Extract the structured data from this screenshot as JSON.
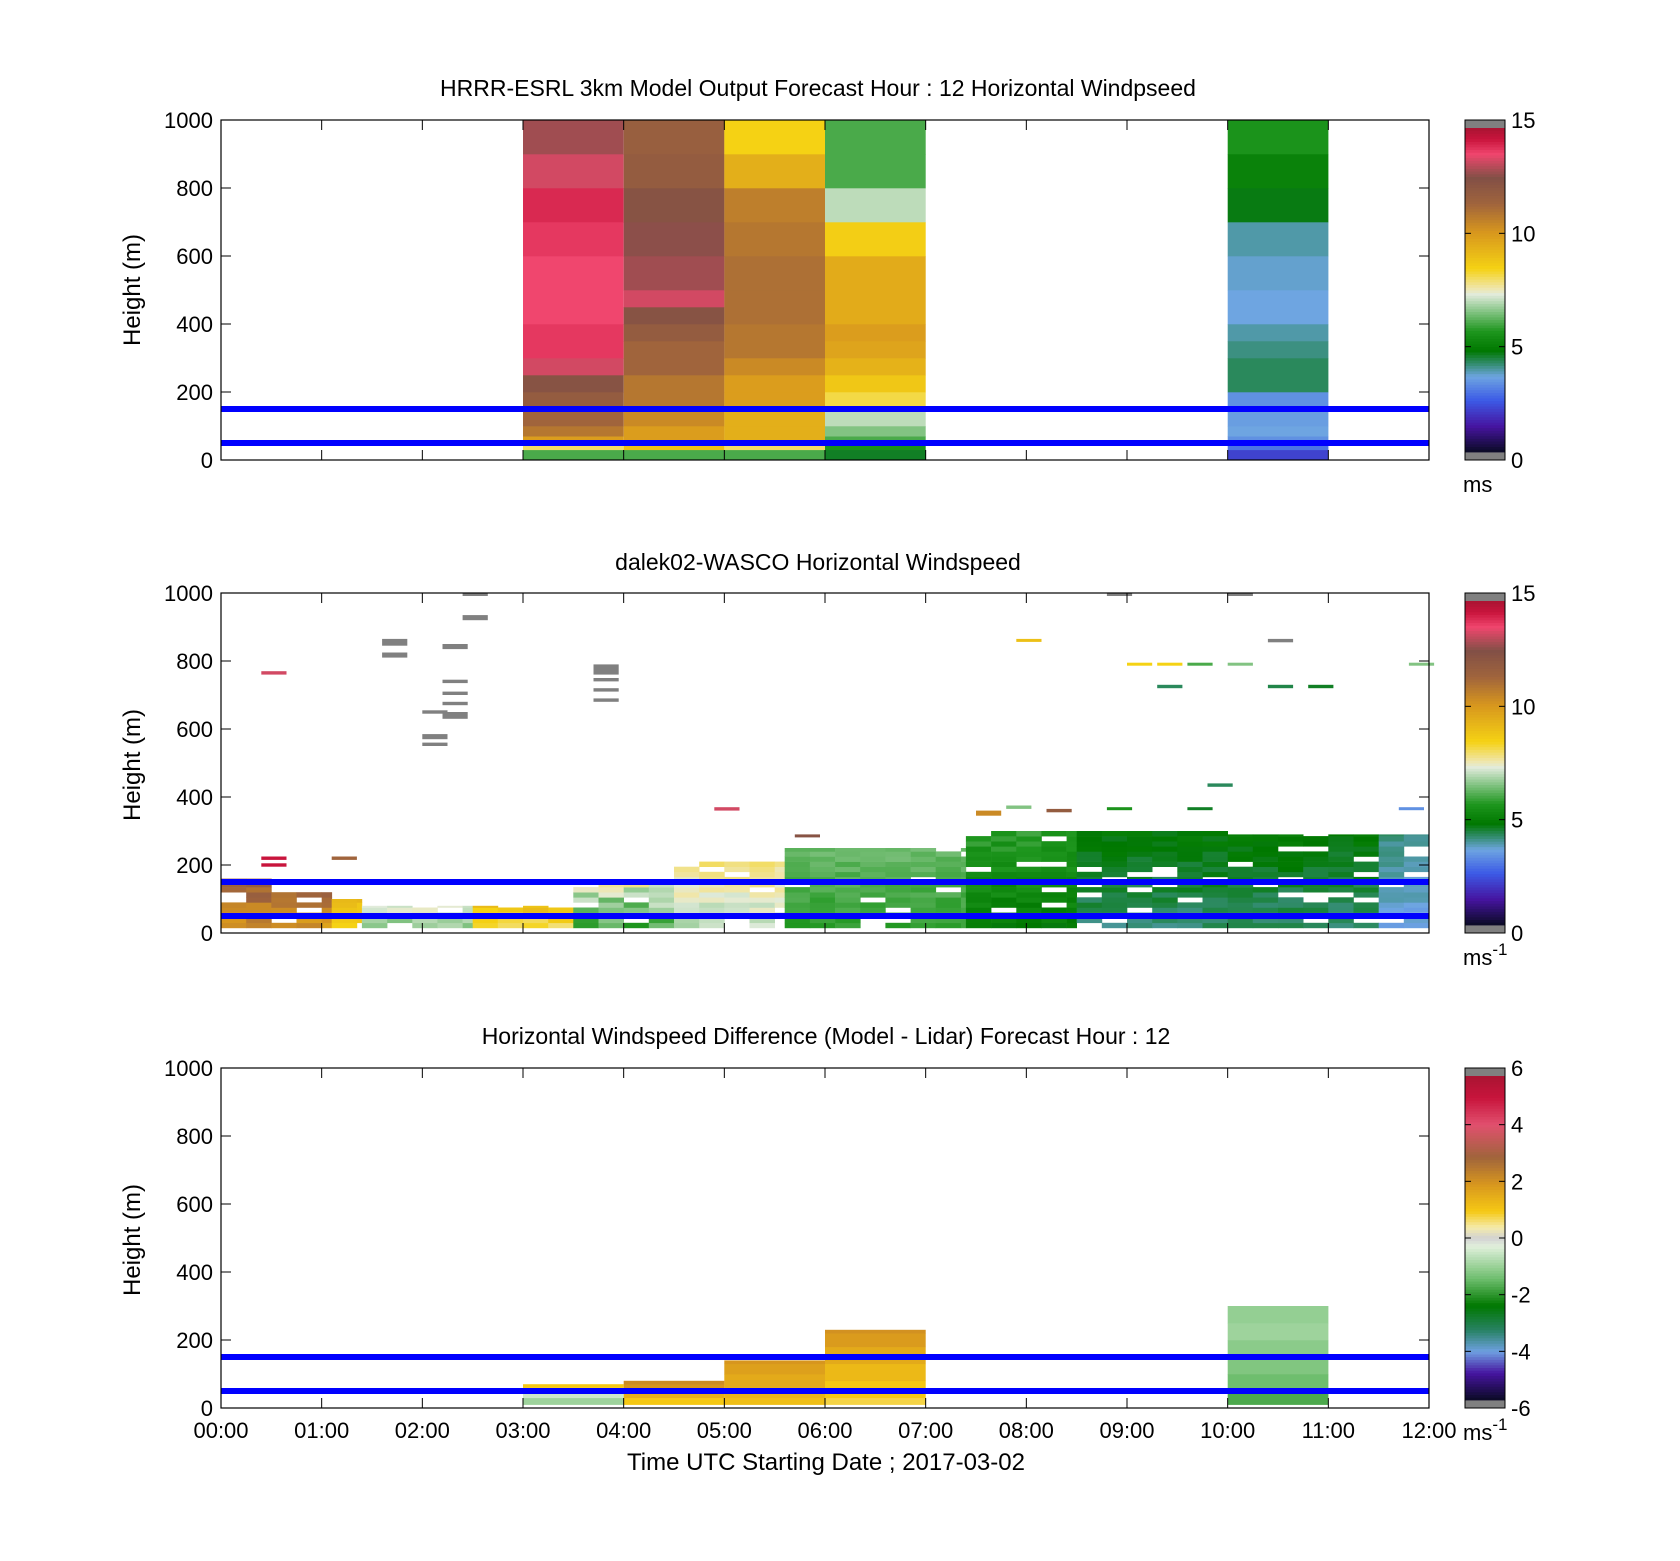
{
  "chart_data": [
    {
      "type": "heatmap",
      "title": "HRRR-ESRL 3km Model Output   Forecast Hour : 12 Horizontal Windpseed",
      "ylabel": "Height (m)",
      "ylim": [
        0,
        1000
      ],
      "yticks": [
        "0",
        "200",
        "400",
        "600",
        "800",
        "1000"
      ],
      "xlim_hours": [
        0,
        12
      ],
      "xticks": [],
      "colorbar": {
        "min": 0,
        "max": 15,
        "ticks": [
          "0",
          "5",
          "10",
          "15"
        ],
        "unit": "ms",
        "unit_sup": "",
        "palette": "speed"
      },
      "reference_lines_m": [
        50,
        150
      ],
      "columns": [
        {
          "t0": 3,
          "t1": 4,
          "bins": [
            [
              0,
              30,
              6
            ],
            [
              30,
              50,
              8
            ],
            [
              50,
              70,
              10
            ],
            [
              70,
              100,
              11
            ],
            [
              100,
              150,
              11.5
            ],
            [
              150,
              200,
              12
            ],
            [
              200,
              250,
              12.5
            ],
            [
              250,
              300,
              13.5
            ],
            [
              300,
              350,
              14
            ],
            [
              350,
              400,
              14
            ],
            [
              400,
              600,
              13.8
            ],
            [
              600,
              700,
              14
            ],
            [
              700,
              800,
              14.2
            ],
            [
              800,
              900,
              13.5
            ],
            [
              900,
              1000,
              13
            ]
          ]
        },
        {
          "t0": 4,
          "t1": 5,
          "bins": [
            [
              0,
              30,
              6
            ],
            [
              30,
              50,
              9
            ],
            [
              50,
              100,
              10
            ],
            [
              100,
              150,
              10.5
            ],
            [
              150,
              200,
              11
            ],
            [
              200,
              250,
              11
            ],
            [
              250,
              300,
              11.5
            ],
            [
              300,
              350,
              11.5
            ],
            [
              350,
              400,
              12
            ],
            [
              400,
              450,
              12.5
            ],
            [
              450,
              500,
              13.5
            ],
            [
              500,
              600,
              13
            ],
            [
              600,
              700,
              12.8
            ],
            [
              700,
              800,
              12.5
            ],
            [
              800,
              900,
              12
            ],
            [
              900,
              1000,
              11.8
            ]
          ]
        },
        {
          "t0": 5,
          "t1": 6,
          "bins": [
            [
              0,
              30,
              6
            ],
            [
              30,
              50,
              8
            ],
            [
              50,
              100,
              9.5
            ],
            [
              100,
              150,
              9.5
            ],
            [
              150,
              200,
              10
            ],
            [
              200,
              250,
              10
            ],
            [
              250,
              300,
              10.5
            ],
            [
              300,
              350,
              11
            ],
            [
              350,
              400,
              11
            ],
            [
              400,
              500,
              11.2
            ],
            [
              500,
              600,
              11.2
            ],
            [
              600,
              700,
              11
            ],
            [
              700,
              800,
              10.8
            ],
            [
              800,
              900,
              9.5
            ],
            [
              900,
              1000,
              8.5
            ]
          ]
        },
        {
          "t0": 6,
          "t1": 7,
          "bins": [
            [
              0,
              30,
              4.5
            ],
            [
              30,
              50,
              5.5
            ],
            [
              50,
              70,
              6
            ],
            [
              70,
              100,
              6.5
            ],
            [
              100,
              150,
              7
            ],
            [
              150,
              200,
              8.2
            ],
            [
              200,
              250,
              8.8
            ],
            [
              250,
              300,
              9.4
            ],
            [
              300,
              350,
              9.8
            ],
            [
              350,
              400,
              10
            ],
            [
              400,
              600,
              9.6
            ],
            [
              600,
              700,
              8.6
            ],
            [
              700,
              800,
              7
            ],
            [
              800,
              900,
              6
            ],
            [
              900,
              1000,
              6
            ]
          ]
        },
        {
          "t0": 10,
          "t1": 11,
          "bins": [
            [
              0,
              30,
              2
            ],
            [
              30,
              50,
              2.8
            ],
            [
              50,
              70,
              3.2
            ],
            [
              70,
              100,
              3.5
            ],
            [
              100,
              150,
              3.4
            ],
            [
              150,
              200,
              3.2
            ],
            [
              200,
              300,
              4.2
            ],
            [
              300,
              350,
              4
            ],
            [
              350,
              400,
              3.8
            ],
            [
              400,
              500,
              3.5
            ],
            [
              500,
              600,
              3.6
            ],
            [
              600,
              700,
              3.8
            ],
            [
              700,
              800,
              4.6
            ],
            [
              800,
              900,
              5
            ],
            [
              900,
              1000,
              5.5
            ]
          ]
        }
      ]
    },
    {
      "type": "heatmap",
      "title": "dalek02-WASCO  Horizontal Windspeed",
      "ylabel": "Height (m)",
      "ylim": [
        0,
        1000
      ],
      "yticks": [
        "0",
        "200",
        "400",
        "600",
        "800",
        "1000"
      ],
      "xlim_hours": [
        0,
        12
      ],
      "xticks": [],
      "colorbar": {
        "min": 0,
        "max": 15,
        "ticks": [
          "0",
          "5",
          "10",
          "15"
        ],
        "unit": "ms",
        "unit_sup": "-1",
        "palette": "speed"
      },
      "reference_lines_m": [
        50,
        150
      ],
      "profiles": [
        {
          "t0": 0,
          "t1": 0.5,
          "top": 160,
          "lo": 9.5,
          "hi": 12.5
        },
        {
          "t0": 0.5,
          "t1": 1.1,
          "top": 120,
          "lo": 9.5,
          "hi": 12
        },
        {
          "t0": 1.1,
          "t1": 1.4,
          "top": 100,
          "lo": 8,
          "hi": 9.5
        },
        {
          "t0": 1.4,
          "t1": 2.5,
          "top": 80,
          "lo": 6,
          "hi": 7.8
        },
        {
          "t0": 2.5,
          "t1": 3.5,
          "top": 80,
          "lo": 7.5,
          "hi": 9.5
        },
        {
          "t0": 3.5,
          "t1": 4.5,
          "top": 150,
          "lo": 5,
          "hi": 8
        },
        {
          "t0": 4.5,
          "t1": 5.6,
          "top": 210,
          "lo": 6.5,
          "hi": 8.2
        },
        {
          "t0": 5.6,
          "t1": 7.4,
          "top": 250,
          "lo": 5.5,
          "hi": 6.5
        },
        {
          "t0": 7.4,
          "t1": 8.5,
          "top": 300,
          "lo": 4.5,
          "hi": 6
        },
        {
          "t0": 8.5,
          "t1": 10,
          "top": 300,
          "lo": 3.8,
          "hi": 5
        },
        {
          "t0": 10,
          "t1": 11.5,
          "top": 290,
          "lo": 3.8,
          "hi": 5
        },
        {
          "t0": 11.5,
          "t1": 12,
          "top": 290,
          "lo": 3.2,
          "hi": 4.2
        }
      ],
      "scatter_bins": [
        {
          "t": 0.4,
          "z0": 760,
          "z1": 770,
          "v": 13.5
        },
        {
          "t": 0.4,
          "z0": 215,
          "z1": 225,
          "v": 14.5
        },
        {
          "t": 0.4,
          "z0": 195,
          "z1": 205,
          "v": 14.5
        },
        {
          "t": 1.1,
          "z0": 215,
          "z1": 225,
          "v": 11.5
        },
        {
          "t": 1.6,
          "z0": 845,
          "z1": 865,
          "v": 15.5
        },
        {
          "t": 1.6,
          "z0": 810,
          "z1": 825,
          "v": 15.5
        },
        {
          "t": 2.0,
          "z0": 645,
          "z1": 655,
          "v": 15.5
        },
        {
          "t": 2.0,
          "z0": 570,
          "z1": 585,
          "v": 15.5
        },
        {
          "t": 2.0,
          "z0": 550,
          "z1": 560,
          "v": 15.5
        },
        {
          "t": 2.2,
          "z0": 835,
          "z1": 850,
          "v": 15.5
        },
        {
          "t": 2.2,
          "z0": 735,
          "z1": 745,
          "v": 15.5
        },
        {
          "t": 2.2,
          "z0": 700,
          "z1": 710,
          "v": 15.5
        },
        {
          "t": 2.2,
          "z0": 670,
          "z1": 680,
          "v": 15.5
        },
        {
          "t": 2.2,
          "z0": 630,
          "z1": 650,
          "v": 15.5
        },
        {
          "t": 2.4,
          "z0": 995,
          "z1": 1000,
          "v": 15.5
        },
        {
          "t": 2.4,
          "z0": 920,
          "z1": 935,
          "v": 15.5
        },
        {
          "t": 3.7,
          "z0": 760,
          "z1": 790,
          "v": 15.5
        },
        {
          "t": 3.7,
          "z0": 740,
          "z1": 750,
          "v": 15.5
        },
        {
          "t": 3.7,
          "z0": 710,
          "z1": 720,
          "v": 15.5
        },
        {
          "t": 3.7,
          "z0": 680,
          "z1": 690,
          "v": 15.5
        },
        {
          "t": 4.9,
          "z0": 360,
          "z1": 370,
          "v": 13.5
        },
        {
          "t": 5.7,
          "z0": 285,
          "z1": 290,
          "v": 12.5
        },
        {
          "t": 7.5,
          "z0": 345,
          "z1": 360,
          "v": 10.5
        },
        {
          "t": 7.8,
          "z0": 365,
          "z1": 375,
          "v": 6.5
        },
        {
          "t": 8.2,
          "z0": 355,
          "z1": 365,
          "v": 12
        },
        {
          "t": 8.8,
          "z0": 995,
          "z1": 1000,
          "v": 15.5
        },
        {
          "t": 8.8,
          "z0": 365,
          "z1": 370,
          "v": 5.5
        },
        {
          "t": 9.0,
          "z0": 790,
          "z1": 795,
          "v": 8.5
        },
        {
          "t": 9.3,
          "z0": 790,
          "z1": 795,
          "v": 8.5
        },
        {
          "t": 9.3,
          "z0": 720,
          "z1": 730,
          "v": 4.2
        },
        {
          "t": 9.6,
          "z0": 790,
          "z1": 795,
          "v": 6
        },
        {
          "t": 9.6,
          "z0": 365,
          "z1": 370,
          "v": 4.5
        },
        {
          "t": 9.8,
          "z0": 430,
          "z1": 440,
          "v": 4.2
        },
        {
          "t": 10.0,
          "z0": 995,
          "z1": 1000,
          "v": 15.5
        },
        {
          "t": 10.0,
          "z0": 790,
          "z1": 795,
          "v": 6.5
        },
        {
          "t": 10.4,
          "z0": 720,
          "z1": 730,
          "v": 4.3
        },
        {
          "t": 10.4,
          "z0": 855,
          "z1": 865,
          "v": 15.5
        },
        {
          "t": 10.8,
          "z0": 720,
          "z1": 730,
          "v": 4.5
        },
        {
          "t": 11.7,
          "z0": 365,
          "z1": 370,
          "v": 3.2
        },
        {
          "t": 11.8,
          "z0": 790,
          "z1": 795,
          "v": 6.5
        },
        {
          "t": 7.9,
          "z0": 860,
          "z1": 865,
          "v": 9
        }
      ]
    },
    {
      "type": "heatmap",
      "title": "Horizontal Windspeed Difference (Model - Lidar) Forecast Hour : 12",
      "xlabel": "Time UTC  Starting Date ; 2017-03-02",
      "ylabel": "Height (m)",
      "ylim": [
        0,
        1000
      ],
      "yticks": [
        "0",
        "200",
        "400",
        "600",
        "800",
        "1000"
      ],
      "xlim_hours": [
        0,
        12
      ],
      "xticks": [
        "00:00",
        "01:00",
        "02:00",
        "03:00",
        "04:00",
        "05:00",
        "06:00",
        "07:00",
        "08:00",
        "09:00",
        "10:00",
        "11:00",
        "12:00"
      ],
      "colorbar": {
        "min": -6,
        "max": 6,
        "ticks": [
          "-6",
          "-4",
          "-2",
          "0",
          "2",
          "4",
          "6"
        ],
        "unit": "ms",
        "unit_sup": "-1",
        "palette": "diff"
      },
      "reference_lines_m": [
        50,
        150
      ],
      "columns": [
        {
          "t0": 3,
          "t1": 4,
          "bins": [
            [
              10,
              30,
              -1
            ],
            [
              30,
              50,
              -0.5
            ],
            [
              50,
              60,
              0.5
            ],
            [
              60,
              70,
              1
            ]
          ]
        },
        {
          "t0": 4,
          "t1": 5,
          "bins": [
            [
              10,
              30,
              1
            ],
            [
              30,
              50,
              1.5
            ],
            [
              50,
              70,
              2
            ],
            [
              70,
              80,
              2.2
            ]
          ]
        },
        {
          "t0": 5,
          "t1": 6,
          "bins": [
            [
              10,
              30,
              1.2
            ],
            [
              30,
              60,
              1.4
            ],
            [
              60,
              100,
              1.6
            ],
            [
              100,
              130,
              1.8
            ],
            [
              130,
              140,
              2
            ]
          ]
        },
        {
          "t0": 6,
          "t1": 7,
          "bins": [
            [
              10,
              30,
              0.8
            ],
            [
              30,
              80,
              1
            ],
            [
              80,
              130,
              1.3
            ],
            [
              130,
              180,
              1.6
            ],
            [
              180,
              220,
              1.9
            ],
            [
              220,
              230,
              2.1
            ]
          ]
        },
        {
          "t0": 10,
          "t1": 11,
          "bins": [
            [
              10,
              50,
              -1.8
            ],
            [
              50,
              100,
              -1.5
            ],
            [
              100,
              150,
              -1.3
            ],
            [
              150,
              200,
              -1.2
            ],
            [
              200,
              250,
              -1
            ],
            [
              250,
              300,
              -1.1
            ]
          ]
        }
      ]
    }
  ]
}
